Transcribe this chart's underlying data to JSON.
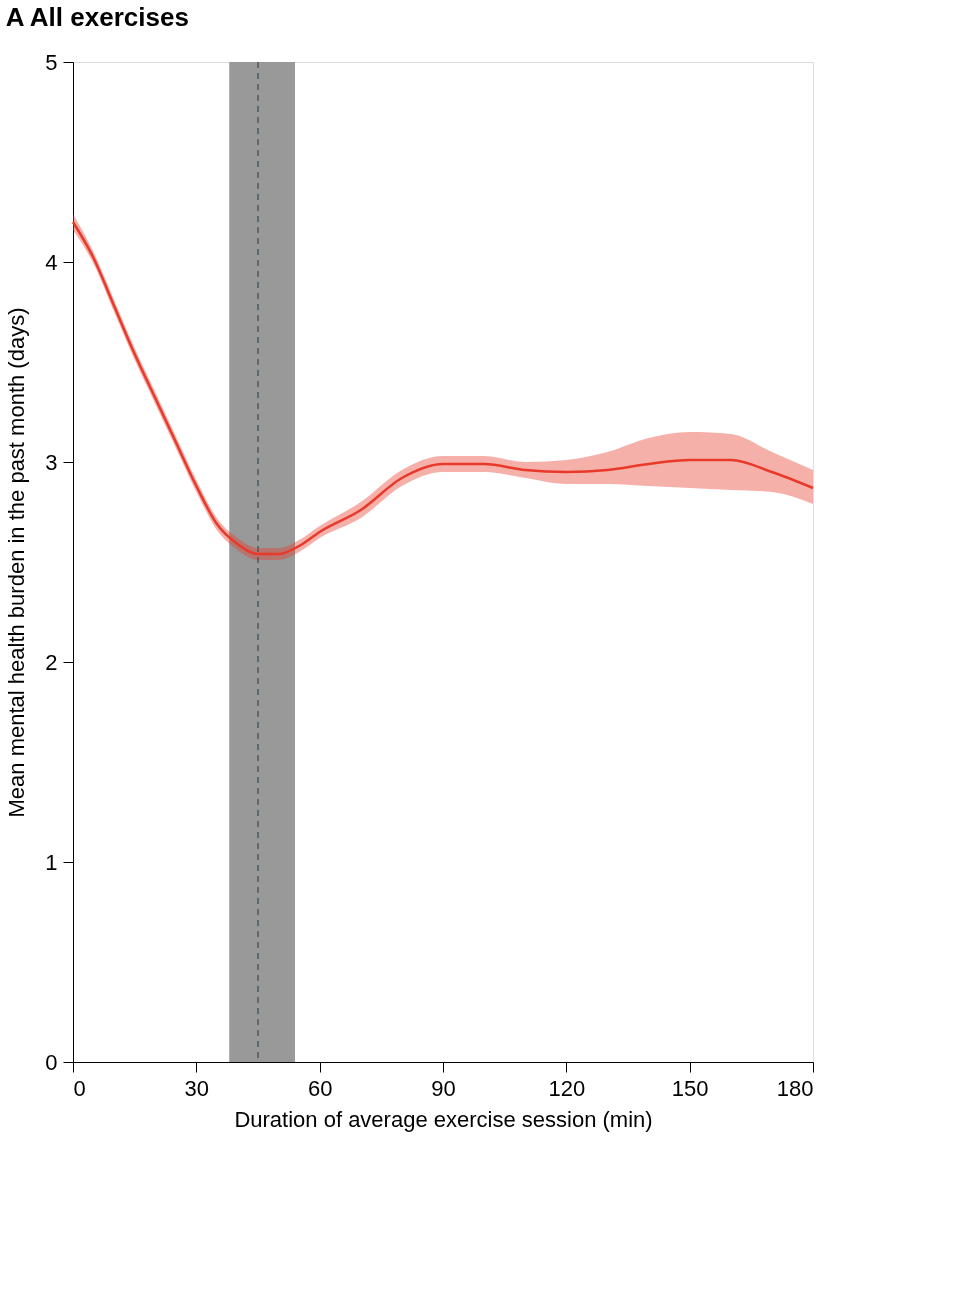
{
  "chart_data": {
    "type": "line",
    "title": "A  All exercises",
    "xlabel": "Duration of average exercise session (min)",
    "ylabel": "Mean mental health burden in the past month (days)",
    "xlim": [
      0,
      180
    ],
    "xticks": [
      0,
      30,
      60,
      90,
      120,
      150,
      180
    ],
    "ylim": [
      0,
      5
    ],
    "yticks": [
      0,
      1,
      2,
      3,
      4,
      5
    ],
    "grid": false,
    "marker": "none",
    "line_style": "solid",
    "series": [
      {
        "color": "#e8392a",
        "x": [
          0,
          5,
          10,
          15,
          20,
          25,
          30,
          35,
          40,
          45,
          50,
          55,
          60,
          70,
          80,
          90,
          100,
          110,
          120,
          130,
          140,
          150,
          160,
          170,
          180
        ],
        "values": [
          4.2,
          4.02,
          3.78,
          3.54,
          3.32,
          3.1,
          2.88,
          2.69,
          2.59,
          2.54,
          2.54,
          2.58,
          2.65,
          2.76,
          2.92,
          2.99,
          2.99,
          2.96,
          2.95,
          2.96,
          2.99,
          3.01,
          3.01,
          2.95,
          2.87
        ],
        "lower": [
          4.16,
          3.99,
          3.75,
          3.51,
          3.29,
          3.07,
          2.85,
          2.66,
          2.56,
          2.51,
          2.51,
          2.55,
          2.62,
          2.72,
          2.88,
          2.95,
          2.95,
          2.92,
          2.89,
          2.89,
          2.88,
          2.87,
          2.86,
          2.85,
          2.79
        ],
        "upper": [
          4.24,
          4.05,
          3.81,
          3.57,
          3.35,
          3.13,
          2.91,
          2.72,
          2.62,
          2.57,
          2.57,
          2.61,
          2.68,
          2.8,
          2.96,
          3.03,
          3.03,
          3.0,
          3.01,
          3.05,
          3.12,
          3.15,
          3.14,
          3.05,
          2.96
        ]
      }
    ],
    "bands": [
      {
        "axis": "x",
        "from": 38,
        "to": 54,
        "color": "#999999"
      }
    ],
    "ref_lines": [
      {
        "axis": "x",
        "value": 45,
        "color": "#4a5a60",
        "line_style": "dashed"
      }
    ]
  }
}
